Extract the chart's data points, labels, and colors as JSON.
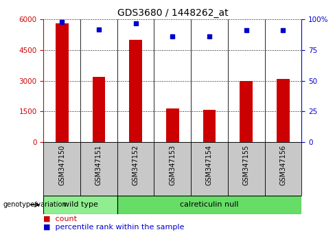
{
  "title": "GDS3680 / 1448262_at",
  "samples": [
    "GSM347150",
    "GSM347151",
    "GSM347152",
    "GSM347153",
    "GSM347154",
    "GSM347155",
    "GSM347156"
  ],
  "counts": [
    5800,
    3200,
    5000,
    1650,
    1580,
    3000,
    3100
  ],
  "percentiles": [
    98,
    92,
    97,
    86,
    86,
    91,
    91
  ],
  "bar_color": "#CC0000",
  "dot_color": "#0000CC",
  "left_ylim": [
    0,
    6000
  ],
  "left_yticks": [
    0,
    1500,
    3000,
    4500,
    6000
  ],
  "right_ylim": [
    0,
    100
  ],
  "right_yticks": [
    0,
    25,
    50,
    75,
    100
  ],
  "right_yticklabels": [
    "0",
    "25",
    "50",
    "75",
    "100%"
  ],
  "groups": [
    {
      "label": "wild type",
      "indices": [
        0,
        1
      ],
      "color": "#90EE90"
    },
    {
      "label": "calreticulin null",
      "indices": [
        2,
        3,
        4,
        5,
        6
      ],
      "color": "#66DD66"
    }
  ],
  "group_label": "genotype/variation",
  "legend_count_label": "count",
  "legend_percentile_label": "percentile rank within the sample",
  "bar_width": 0.5,
  "sample_bg_color": "#C8C8C8",
  "plot_bg": "#FFFFFF",
  "title_fontsize": 10,
  "tick_fontsize": 7.5,
  "label_fontsize": 8,
  "sample_fontsize": 7
}
